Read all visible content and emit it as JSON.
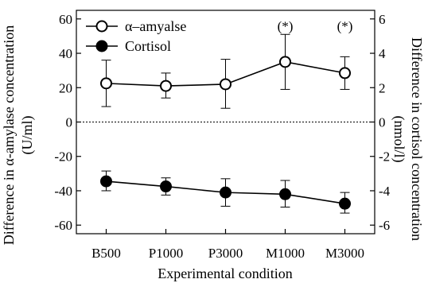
{
  "chart_data": {
    "type": "line",
    "categories": [
      "B500",
      "P1000",
      "P3000",
      "M1000",
      "M3000"
    ],
    "xlabel": "Experimental condition",
    "ylabel_left": [
      "Difference in α-amylase concentration",
      "(U/ml)"
    ],
    "ylabel_right": [
      "Difference in cortisol concentration",
      "(nmol/l)"
    ],
    "ylim_left": [
      -65,
      65
    ],
    "ylim_right": [
      -6.5,
      6.5
    ],
    "yticks_left": [
      60,
      40,
      20,
      0,
      -20,
      -40,
      -60
    ],
    "yticks_right": [
      6,
      4,
      2,
      0,
      -2,
      -4,
      -6
    ],
    "zero_line": "dotted",
    "legend_position": "top-left",
    "series": [
      {
        "name": "α–amyalse",
        "axis": "left",
        "marker": "open-circle",
        "values": [
          22.5,
          21,
          22,
          35,
          28.5
        ],
        "err_upper": [
          36,
          28.5,
          36.5,
          51,
          38
        ],
        "err_lower": [
          9,
          14,
          8,
          19,
          19
        ]
      },
      {
        "name": "Cortisol",
        "axis": "right",
        "marker": "filled-circle",
        "values": [
          -3.45,
          -3.75,
          -4.1,
          -4.2,
          -4.75
        ],
        "err_upper": [
          -2.85,
          -3.25,
          -3.3,
          -3.4,
          -4.1
        ],
        "err_lower": [
          -4.0,
          -4.25,
          -4.9,
          -4.95,
          -5.3
        ]
      }
    ],
    "annotations": [
      {
        "text": "(*)",
        "category": "M1000",
        "y": 56
      },
      {
        "text": "(*)",
        "category": "M3000",
        "y": 56
      }
    ],
    "colors": {
      "line": "#000000",
      "open_fill": "#ffffff",
      "filled": "#000000"
    }
  }
}
